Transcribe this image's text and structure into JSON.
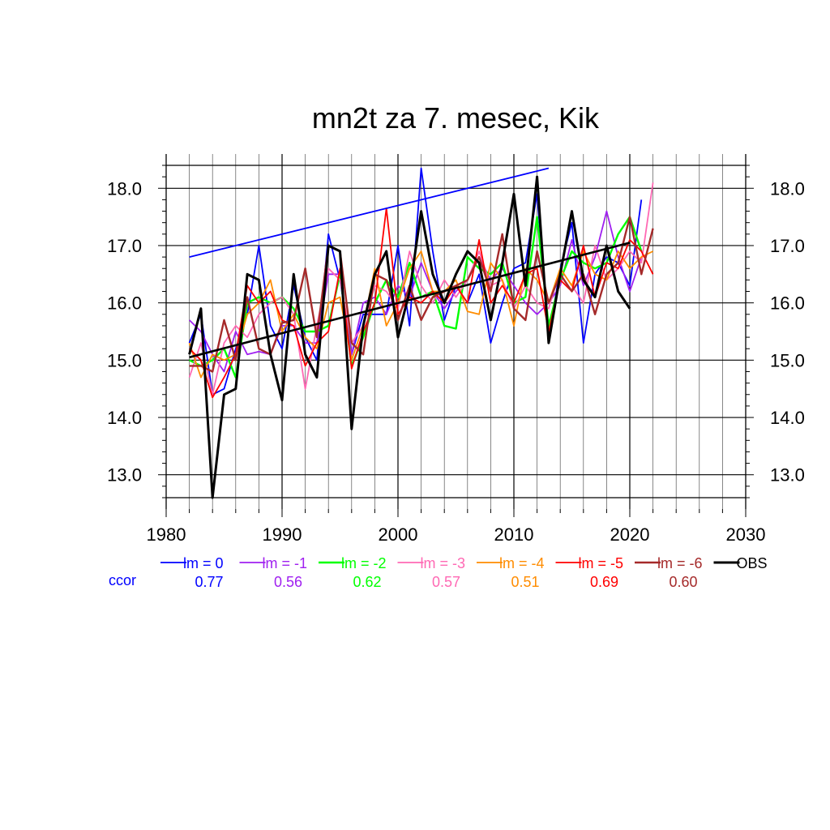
{
  "chart_data": {
    "type": "line",
    "title": "mn2t za 7. mesec, Kik",
    "xlim": [
      1980,
      2030
    ],
    "ylim": [
      12.6,
      18.4
    ],
    "x_ticks": [
      1980,
      1990,
      2000,
      2010,
      2020,
      2030
    ],
    "x_tick_labels": [
      "1980",
      "1990",
      "2000",
      "2010",
      "2020",
      "2030"
    ],
    "y_ticks": [
      13.0,
      14.0,
      15.0,
      16.0,
      17.0,
      18.0
    ],
    "y_tick_labels": [
      "13.0",
      "14.0",
      "15.0",
      "16.0",
      "17.0",
      "18.0"
    ],
    "grid": true,
    "legend_position": "bottom",
    "ccor_label": "ccor",
    "series": [
      {
        "name": "lm = 0",
        "color": "#0000ff",
        "width": 1.8,
        "ccor": "0.77",
        "x": [
          1982,
          1983,
          1984,
          1985,
          1986,
          1987,
          1988,
          1989,
          1990,
          1991,
          1992,
          1993,
          1994,
          1995,
          1996,
          1997,
          1998,
          1999,
          2000,
          2001,
          2002,
          2003,
          2004,
          2005,
          2006,
          2007,
          2008,
          2009,
          2010,
          2011,
          2012,
          2013,
          2014,
          2015,
          2016,
          2017,
          2018,
          2019,
          2020,
          2021
        ],
        "y": [
          15.3,
          15.8,
          14.4,
          14.5,
          15.2,
          15.8,
          17.0,
          15.6,
          15.2,
          16.3,
          15.4,
          15.0,
          17.2,
          16.4,
          15.1,
          15.8,
          15.8,
          15.8,
          17.0,
          15.6,
          18.35,
          16.9,
          15.7,
          16.3,
          16.0,
          16.5,
          15.3,
          16.0,
          16.6,
          16.7,
          17.9,
          15.4,
          16.6,
          17.4,
          15.3,
          16.5,
          16.8,
          16.7,
          16.3,
          17.8
        ]
      },
      {
        "name": "lm = -1",
        "color": "#a020f0",
        "width": 1.8,
        "ccor": "0.56",
        "x": [
          1982,
          1983,
          1984,
          1985,
          1986,
          1987,
          1988,
          1989,
          1990,
          1991,
          1992,
          1993,
          1994,
          1995,
          1996,
          1997,
          1998,
          1999,
          2000,
          2001,
          2002,
          2003,
          2004,
          2005,
          2006,
          2007,
          2008,
          2009,
          2010,
          2011,
          2012,
          2013,
          2014,
          2015,
          2016,
          2017,
          2018,
          2019,
          2020,
          2021
        ],
        "y": [
          15.7,
          15.5,
          15.1,
          14.8,
          15.5,
          15.1,
          15.15,
          15.1,
          15.6,
          15.6,
          15.3,
          15.3,
          16.5,
          16.5,
          15.1,
          16.0,
          16.1,
          15.8,
          16.3,
          16.1,
          16.7,
          16.2,
          15.9,
          16.2,
          16.4,
          16.8,
          16.4,
          16.6,
          16.3,
          16.0,
          15.8,
          16.0,
          16.3,
          17.1,
          16.3,
          16.8,
          17.6,
          16.8,
          16.2,
          16.8
        ]
      },
      {
        "name": "lm = -2",
        "color": "#00ff00",
        "width": 2.4,
        "ccor": "0.62",
        "x": [
          1982,
          1983,
          1984,
          1985,
          1986,
          1987,
          1988,
          1989,
          1990,
          1991,
          1992,
          1993,
          1994,
          1995,
          1996,
          1997,
          1998,
          1999,
          2000,
          2001,
          2002,
          2003,
          2004,
          2005,
          2006,
          2007,
          2008,
          2009,
          2010,
          2011,
          2012,
          2013,
          2014,
          2015,
          2016,
          2017,
          2018,
          2019,
          2020,
          2021
        ],
        "y": [
          15.0,
          14.9,
          15.0,
          15.2,
          14.7,
          16.0,
          16.1,
          16.0,
          16.1,
          15.9,
          15.5,
          15.5,
          15.6,
          16.5,
          14.9,
          15.4,
          16.0,
          16.4,
          16.1,
          16.7,
          16.1,
          16.2,
          15.6,
          15.55,
          16.8,
          16.6,
          16.5,
          16.7,
          16.0,
          16.1,
          17.5,
          15.6,
          16.4,
          16.9,
          16.7,
          16.6,
          16.7,
          17.2,
          17.5,
          16.9
        ]
      },
      {
        "name": "lm = -3",
        "color": "#ff69b4",
        "width": 1.8,
        "ccor": "0.57",
        "x": [
          1982,
          1983,
          1984,
          1985,
          1986,
          1987,
          1988,
          1989,
          1990,
          1991,
          1992,
          1993,
          1994,
          1995,
          1996,
          1997,
          1998,
          1999,
          2000,
          2001,
          2002,
          2003,
          2004,
          2005,
          2006,
          2007,
          2008,
          2009,
          2010,
          2011,
          2012,
          2013,
          2014,
          2015,
          2016,
          2017,
          2018,
          2019,
          2020,
          2021,
          2022
        ],
        "y": [
          14.7,
          15.3,
          14.4,
          15.3,
          15.6,
          15.4,
          15.8,
          16.0,
          16.1,
          15.8,
          14.5,
          15.6,
          16.6,
          16.4,
          15.3,
          15.6,
          16.3,
          16.2,
          15.9,
          16.9,
          16.3,
          16.0,
          16.4,
          16.1,
          16.4,
          16.9,
          16.3,
          16.4,
          15.9,
          16.3,
          16.0,
          15.9,
          16.6,
          16.3,
          16.0,
          17.0,
          16.4,
          16.6,
          16.9,
          16.7,
          18.1
        ]
      },
      {
        "name": "lm = -4",
        "color": "#ff8c00",
        "width": 1.8,
        "ccor": "0.51",
        "x": [
          1982,
          1983,
          1984,
          1985,
          1986,
          1987,
          1988,
          1989,
          1990,
          1991,
          1992,
          1993,
          1994,
          1995,
          1996,
          1997,
          1998,
          1999,
          2000,
          2001,
          2002,
          2003,
          2004,
          2005,
          2006,
          2007,
          2008,
          2009,
          2010,
          2011,
          2012,
          2013,
          2014,
          2015,
          2016,
          2017,
          2018,
          2019,
          2020,
          2021,
          2022
        ],
        "y": [
          15.3,
          14.7,
          15.1,
          15.0,
          15.1,
          15.8,
          16.0,
          16.4,
          15.5,
          15.8,
          15.4,
          15.2,
          16.0,
          16.1,
          15.0,
          15.6,
          16.6,
          15.6,
          16.0,
          16.6,
          16.9,
          16.2,
          16.2,
          16.4,
          15.85,
          15.8,
          16.7,
          16.4,
          15.6,
          16.6,
          16.4,
          16.0,
          16.6,
          16.3,
          16.9,
          16.5,
          16.4,
          16.9,
          16.6,
          16.8,
          16.9
        ]
      },
      {
        "name": "lm = -5",
        "color": "#ff0000",
        "width": 1.8,
        "ccor": "0.69",
        "x": [
          1982,
          1983,
          1984,
          1985,
          1986,
          1987,
          1988,
          1989,
          1990,
          1991,
          1992,
          1993,
          1994,
          1995,
          1996,
          1997,
          1998,
          1999,
          2000,
          2001,
          2002,
          2003,
          2004,
          2005,
          2006,
          2007,
          2008,
          2009,
          2010,
          2011,
          2012,
          2013,
          2014,
          2015,
          2016,
          2017,
          2018,
          2019,
          2020,
          2021,
          2022
        ],
        "y": [
          15.2,
          15.0,
          14.35,
          14.7,
          15.1,
          16.3,
          16.0,
          16.2,
          15.7,
          15.6,
          14.9,
          15.3,
          15.5,
          16.6,
          14.85,
          15.5,
          16.0,
          17.65,
          15.8,
          16.1,
          16.0,
          16.2,
          16.0,
          16.3,
          16.0,
          17.1,
          16.0,
          16.3,
          16.0,
          16.5,
          16.6,
          15.5,
          16.4,
          16.2,
          17.0,
          16.1,
          16.7,
          16.6,
          17.1,
          16.9,
          16.5
        ]
      },
      {
        "name": "lm = -6",
        "color": "#a52a2a",
        "width": 2.4,
        "ccor": "0.60",
        "x": [
          1982,
          1983,
          1984,
          1985,
          1986,
          1987,
          1988,
          1989,
          1990,
          1991,
          1992,
          1993,
          1994,
          1995,
          1996,
          1997,
          1998,
          1999,
          2000,
          2001,
          2002,
          2003,
          2004,
          2005,
          2006,
          2007,
          2008,
          2009,
          2010,
          2011,
          2012,
          2013,
          2014,
          2015,
          2016,
          2017,
          2018,
          2019,
          2020,
          2021,
          2022
        ],
        "y": [
          14.9,
          14.9,
          14.8,
          15.7,
          15.0,
          16.1,
          15.2,
          15.1,
          15.65,
          15.7,
          16.6,
          15.4,
          17.0,
          16.9,
          15.3,
          15.1,
          16.5,
          16.4,
          15.7,
          16.3,
          15.7,
          16.1,
          16.2,
          16.3,
          16.4,
          16.8,
          16.2,
          17.2,
          15.9,
          15.7,
          16.9,
          16.0,
          16.5,
          16.2,
          16.5,
          15.8,
          16.5,
          16.7,
          17.5,
          16.5,
          17.3
        ]
      },
      {
        "name": "OBS",
        "color": "#000000",
        "width": 3.0,
        "ccor": "",
        "x": [
          1982,
          1983,
          1984,
          1985,
          1986,
          1987,
          1988,
          1989,
          1990,
          1991,
          1992,
          1993,
          1994,
          1995,
          1996,
          1997,
          1998,
          1999,
          2000,
          2001,
          2002,
          2003,
          2004,
          2005,
          2006,
          2007,
          2008,
          2009,
          2010,
          2011,
          2012,
          2013,
          2014,
          2015,
          2016,
          2017,
          2018,
          2019,
          2020
        ],
        "y": [
          15.1,
          15.9,
          12.6,
          14.4,
          14.5,
          16.5,
          16.4,
          15.1,
          14.3,
          16.5,
          15.1,
          14.7,
          17.0,
          16.9,
          13.8,
          15.6,
          16.5,
          16.9,
          15.4,
          16.2,
          17.6,
          16.5,
          16.0,
          16.5,
          16.9,
          16.7,
          15.7,
          16.7,
          17.9,
          16.3,
          18.2,
          15.3,
          16.5,
          17.6,
          16.4,
          16.1,
          17.0,
          16.2,
          15.9
        ]
      }
    ],
    "trend_lines": [
      {
        "name": "lm = 0 trend",
        "color": "#0000ff",
        "width": 1.8,
        "x": [
          1982,
          2013
        ],
        "y": [
          16.8,
          18.35
        ]
      },
      {
        "name": "OBS trend",
        "color": "#000000",
        "width": 2.6,
        "x": [
          1982,
          2020
        ],
        "y": [
          15.05,
          17.05
        ]
      }
    ]
  }
}
